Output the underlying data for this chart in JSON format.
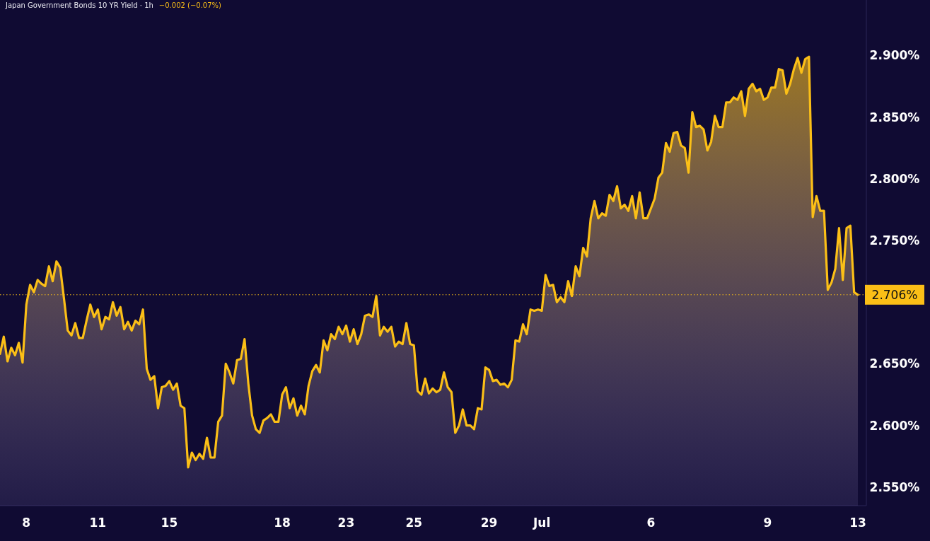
{
  "chart_data": {
    "type": "area",
    "title": "Japan Government Bonds 10 YR Yield · 1h",
    "subtitle": "−0.002 (−0.07%)",
    "categories": [
      null,
      null,
      null,
      null,
      null,
      null,
      null,
      "8",
      null,
      null,
      null,
      null,
      null,
      null,
      null,
      null,
      null,
      null,
      null,
      null,
      null,
      null,
      null,
      null,
      null,
      null,
      "11",
      null,
      null,
      null,
      null,
      null,
      null,
      null,
      null,
      null,
      null,
      null,
      null,
      null,
      null,
      null,
      null,
      null,
      null,
      "15",
      null,
      null,
      null,
      null,
      null,
      null,
      null,
      null,
      null,
      null,
      null,
      null,
      null,
      null,
      null,
      null,
      null,
      null,
      null,
      null,
      null,
      null,
      null,
      null,
      null,
      null,
      null,
      null,
      null,
      "18",
      null,
      null,
      null,
      null,
      null,
      null,
      null,
      null,
      null,
      null,
      null,
      null,
      null,
      null,
      null,
      null,
      "23",
      null,
      null,
      null,
      null,
      null,
      null,
      null,
      null,
      null,
      null,
      null,
      null,
      null,
      null,
      null,
      null,
      null,
      "25",
      null,
      null,
      null,
      null,
      null,
      null,
      null,
      null,
      null,
      null,
      null,
      null,
      null,
      null,
      null,
      null,
      null,
      null,
      null,
      "29",
      null,
      null,
      null,
      null,
      null,
      null,
      null,
      null,
      null,
      null,
      null,
      null,
      null,
      "Jul",
      null,
      null,
      null,
      null,
      null,
      null,
      null,
      null,
      null,
      null,
      null,
      null,
      null,
      null,
      null,
      null,
      null,
      null,
      null,
      null,
      null,
      null,
      null,
      null,
      null,
      null,
      null,
      null,
      "6",
      null,
      null,
      null,
      null,
      null,
      null,
      null,
      null,
      null,
      null,
      null,
      null,
      null,
      null,
      null,
      null,
      null,
      null,
      null,
      null,
      null,
      null,
      null,
      null,
      null,
      null,
      null,
      null,
      null,
      null,
      "9",
      null,
      null,
      null,
      null,
      null,
      null,
      null,
      null,
      null,
      null,
      null,
      null,
      null,
      null,
      null,
      null,
      null,
      null,
      null,
      null,
      null,
      null,
      null,
      "13"
    ],
    "series": [
      {
        "color": "#fbbf17",
        "values": [
          2.658,
          2.672,
          2.652,
          2.663,
          2.657,
          2.667,
          2.651,
          2.698,
          2.714,
          2.708,
          2.718,
          2.715,
          2.713,
          2.729,
          2.717,
          2.733,
          2.728,
          2.703,
          2.677,
          2.673,
          2.683,
          2.671,
          2.671,
          2.685,
          2.698,
          2.688,
          2.694,
          2.678,
          2.688,
          2.686,
          2.7,
          2.689,
          2.696,
          2.678,
          2.684,
          2.677,
          2.685,
          2.682,
          2.694,
          2.646,
          2.637,
          2.64,
          2.614,
          2.631,
          2.632,
          2.636,
          2.629,
          2.634,
          2.616,
          2.614,
          2.566,
          2.578,
          2.572,
          2.577,
          2.573,
          2.59,
          2.574,
          2.574,
          2.603,
          2.608,
          2.65,
          2.643,
          2.634,
          2.653,
          2.654,
          2.67,
          2.634,
          2.608,
          2.597,
          2.594,
          2.604,
          2.606,
          2.609,
          2.603,
          2.603,
          2.625,
          2.631,
          2.614,
          2.622,
          2.608,
          2.616,
          2.609,
          2.632,
          2.644,
          2.649,
          2.643,
          2.669,
          2.661,
          2.674,
          2.67,
          2.68,
          2.674,
          2.681,
          2.668,
          2.678,
          2.666,
          2.674,
          2.689,
          2.69,
          2.688,
          2.705,
          2.673,
          2.68,
          2.676,
          2.68,
          2.664,
          2.668,
          2.666,
          2.683,
          2.666,
          2.665,
          2.628,
          2.625,
          2.638,
          2.626,
          2.63,
          2.627,
          2.629,
          2.643,
          2.631,
          2.627,
          2.594,
          2.6,
          2.613,
          2.6,
          2.6,
          2.597,
          2.614,
          2.613,
          2.647,
          2.645,
          2.636,
          2.637,
          2.633,
          2.634,
          2.631,
          2.637,
          2.669,
          2.668,
          2.682,
          2.674,
          2.694,
          2.693,
          2.694,
          2.693,
          2.722,
          2.713,
          2.714,
          2.7,
          2.704,
          2.7,
          2.717,
          2.705,
          2.729,
          2.721,
          2.744,
          2.737,
          2.768,
          2.782,
          2.768,
          2.772,
          2.77,
          2.787,
          2.782,
          2.794,
          2.776,
          2.779,
          2.774,
          2.786,
          2.768,
          2.789,
          2.768,
          2.768,
          2.776,
          2.784,
          2.801,
          2.805,
          2.829,
          2.822,
          2.837,
          2.838,
          2.827,
          2.825,
          2.805,
          2.854,
          2.842,
          2.843,
          2.84,
          2.823,
          2.83,
          2.851,
          2.842,
          2.842,
          2.862,
          2.862,
          2.866,
          2.864,
          2.871,
          2.851,
          2.873,
          2.877,
          2.871,
          2.873,
          2.864,
          2.866,
          2.874,
          2.874,
          2.889,
          2.888,
          2.869,
          2.877,
          2.889,
          2.898,
          2.886,
          2.897,
          2.899,
          2.769,
          2.786,
          2.774,
          2.774,
          2.71,
          2.716,
          2.727,
          2.76,
          2.718,
          2.76,
          2.762,
          2.708,
          2.706
        ]
      }
    ],
    "ylim": [
      2.535,
      2.945
    ],
    "yticks": [
      {
        "value": 2.55,
        "label": "2.550%"
      },
      {
        "value": 2.6,
        "label": "2.600%"
      },
      {
        "value": 2.65,
        "label": "2.650%"
      },
      {
        "value": 2.75,
        "label": "2.750%"
      },
      {
        "value": 2.8,
        "label": "2.800%"
      },
      {
        "value": 2.85,
        "label": "2.850%"
      },
      {
        "value": 2.9,
        "label": "2.900%"
      }
    ],
    "ref_lines": [
      {
        "axis": "y",
        "value": 2.706,
        "label": "2.706%",
        "color": "#fbbf17",
        "line_style": "dotted"
      }
    ],
    "grid": false
  }
}
